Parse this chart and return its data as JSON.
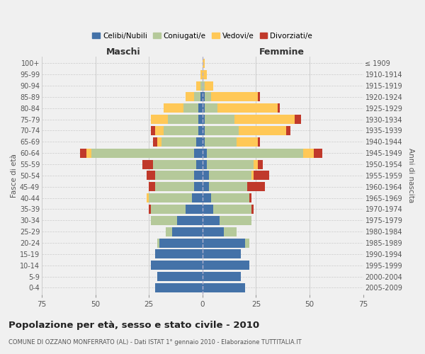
{
  "age_groups": [
    "0-4",
    "5-9",
    "10-14",
    "15-19",
    "20-24",
    "25-29",
    "30-34",
    "35-39",
    "40-44",
    "45-49",
    "50-54",
    "55-59",
    "60-64",
    "65-69",
    "70-74",
    "75-79",
    "80-84",
    "85-89",
    "90-94",
    "95-99",
    "100+"
  ],
  "birth_years": [
    "2005-2009",
    "2000-2004",
    "1995-1999",
    "1990-1994",
    "1985-1989",
    "1980-1984",
    "1975-1979",
    "1970-1974",
    "1965-1969",
    "1960-1964",
    "1955-1959",
    "1950-1954",
    "1945-1949",
    "1940-1944",
    "1935-1939",
    "1930-1934",
    "1925-1929",
    "1920-1924",
    "1915-1919",
    "1910-1914",
    "≤ 1909"
  ],
  "males": {
    "celibi": [
      22,
      21,
      24,
      22,
      20,
      14,
      12,
      8,
      5,
      4,
      4,
      3,
      4,
      3,
      2,
      2,
      2,
      1,
      0,
      0,
      0
    ],
    "coniugati": [
      0,
      0,
      0,
      0,
      1,
      3,
      12,
      16,
      20,
      18,
      18,
      20,
      48,
      16,
      16,
      14,
      7,
      3,
      1,
      0,
      0
    ],
    "vedovi": [
      0,
      0,
      0,
      0,
      0,
      0,
      0,
      0,
      1,
      0,
      0,
      0,
      2,
      2,
      4,
      8,
      9,
      4,
      2,
      1,
      0
    ],
    "divorziati": [
      0,
      0,
      0,
      0,
      0,
      0,
      0,
      1,
      0,
      3,
      4,
      5,
      3,
      2,
      2,
      0,
      0,
      0,
      0,
      0,
      0
    ]
  },
  "females": {
    "nubili": [
      20,
      18,
      22,
      18,
      20,
      10,
      8,
      5,
      4,
      3,
      3,
      2,
      2,
      1,
      1,
      1,
      1,
      1,
      0,
      0,
      0
    ],
    "coniugate": [
      0,
      0,
      0,
      0,
      2,
      6,
      15,
      18,
      18,
      18,
      20,
      22,
      45,
      15,
      16,
      14,
      6,
      3,
      1,
      0,
      0
    ],
    "vedove": [
      0,
      0,
      0,
      0,
      0,
      0,
      0,
      0,
      0,
      0,
      1,
      2,
      5,
      10,
      22,
      28,
      28,
      22,
      4,
      2,
      1
    ],
    "divorziate": [
      0,
      0,
      0,
      0,
      0,
      0,
      0,
      1,
      1,
      8,
      7,
      2,
      4,
      1,
      2,
      3,
      1,
      1,
      0,
      0,
      0
    ]
  },
  "colors": {
    "celibi": "#4472a8",
    "coniugati": "#b5c99a",
    "vedovi": "#ffc857",
    "divorziati": "#c0392b"
  },
  "xlim": 75,
  "title": "Popolazione per età, sesso e stato civile - 2010",
  "subtitle": "COMUNE DI OZZANO MONFERRATO (AL) - Dati ISTAT 1° gennaio 2010 - Elaborazione TUTTITALIA.IT",
  "ylabel_left": "Fasce di età",
  "ylabel_right": "Anni di nascita",
  "xlabel_left": "Maschi",
  "xlabel_right": "Femmine",
  "legend_labels": [
    "Celibi/Nubili",
    "Coniugati/e",
    "Vedovi/e",
    "Divorziati/e"
  ],
  "bg_color": "#f0f0f0",
  "grid_color": "#cccccc"
}
